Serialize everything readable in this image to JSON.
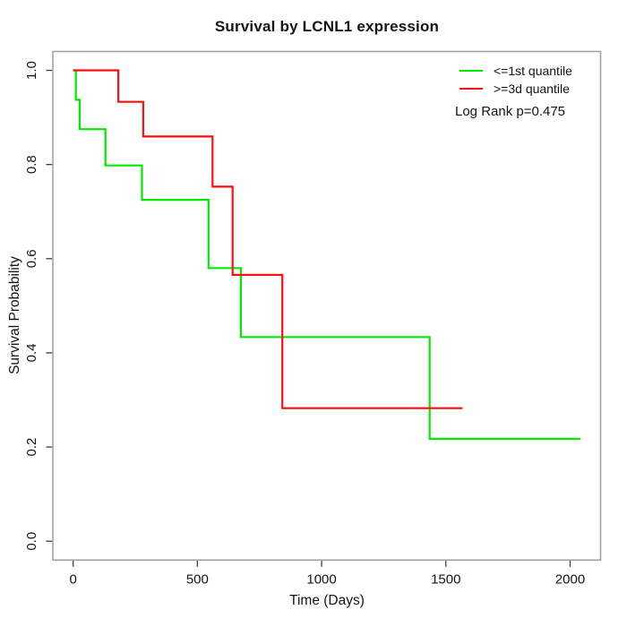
{
  "chart_data": {
    "type": "line",
    "subtype": "kaplan-meier-step",
    "title": "Survival by LCNL1 expression",
    "xlabel": "Time (Days)",
    "ylabel": "Survival Probability",
    "annotation": "Log Rank p=0.475",
    "xlim": [
      0,
      2120
    ],
    "ylim": [
      0,
      1
    ],
    "grid": false,
    "legend_position": "top-right",
    "x_ticks": [
      {
        "v": 0,
        "label": "0"
      },
      {
        "v": 500,
        "label": "500"
      },
      {
        "v": 1000,
        "label": "1000"
      },
      {
        "v": 1500,
        "label": "1500"
      },
      {
        "v": 2000,
        "label": "2000"
      }
    ],
    "y_ticks": [
      {
        "v": 0.0,
        "label": "0.0"
      },
      {
        "v": 0.2,
        "label": "0.2"
      },
      {
        "v": 0.4,
        "label": "0.4"
      },
      {
        "v": 0.6,
        "label": "0.6"
      },
      {
        "v": 0.8,
        "label": "0.8"
      },
      {
        "v": 1.0,
        "label": "1.0"
      }
    ],
    "series": [
      {
        "name": "<=1st quantile",
        "color": "#00EA00",
        "start": [
          0,
          1.0
        ],
        "drops": [
          [
            11,
            0.9375
          ],
          [
            26,
            0.875
          ],
          [
            130,
            0.798
          ],
          [
            277,
            0.725
          ],
          [
            545,
            0.58
          ],
          [
            675,
            0.4335
          ],
          [
            1435,
            0.2175
          ]
        ],
        "end_time": 2041
      },
      {
        "name": ">=3d quantile",
        "color": "#FF0F0F",
        "start": [
          0,
          1.0
        ],
        "drops": [
          [
            182,
            0.933
          ],
          [
            282,
            0.8595
          ],
          [
            561,
            0.753
          ],
          [
            642,
            0.5655
          ],
          [
            842,
            0.2825
          ]
        ],
        "end_time": 1567
      }
    ]
  }
}
